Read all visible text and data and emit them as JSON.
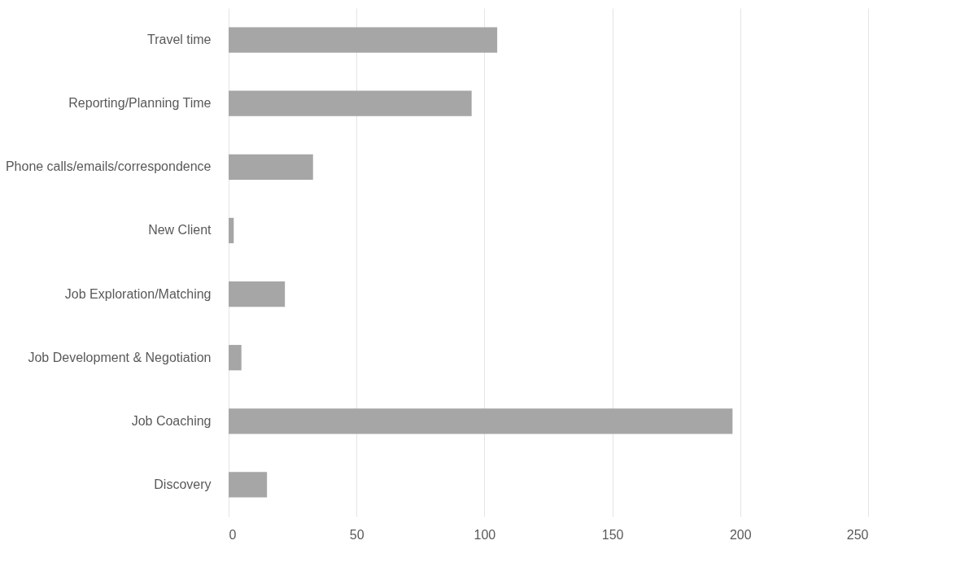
{
  "chart_data": {
    "type": "bar",
    "orientation": "horizontal",
    "categories": [
      "Travel time",
      "Reporting/Planning Time",
      "Phone calls/emails/correspondence",
      "New Client",
      "Job Exploration/Matching",
      "Job Development & Negotiation",
      "Job Coaching",
      "Discovery"
    ],
    "values": [
      105,
      95,
      33,
      2,
      22,
      5,
      197,
      15
    ],
    "color": "#a6a6a6",
    "xlim": [
      0,
      250
    ],
    "xticks": [
      0,
      50,
      100,
      150,
      200,
      250
    ],
    "grid": "x"
  }
}
